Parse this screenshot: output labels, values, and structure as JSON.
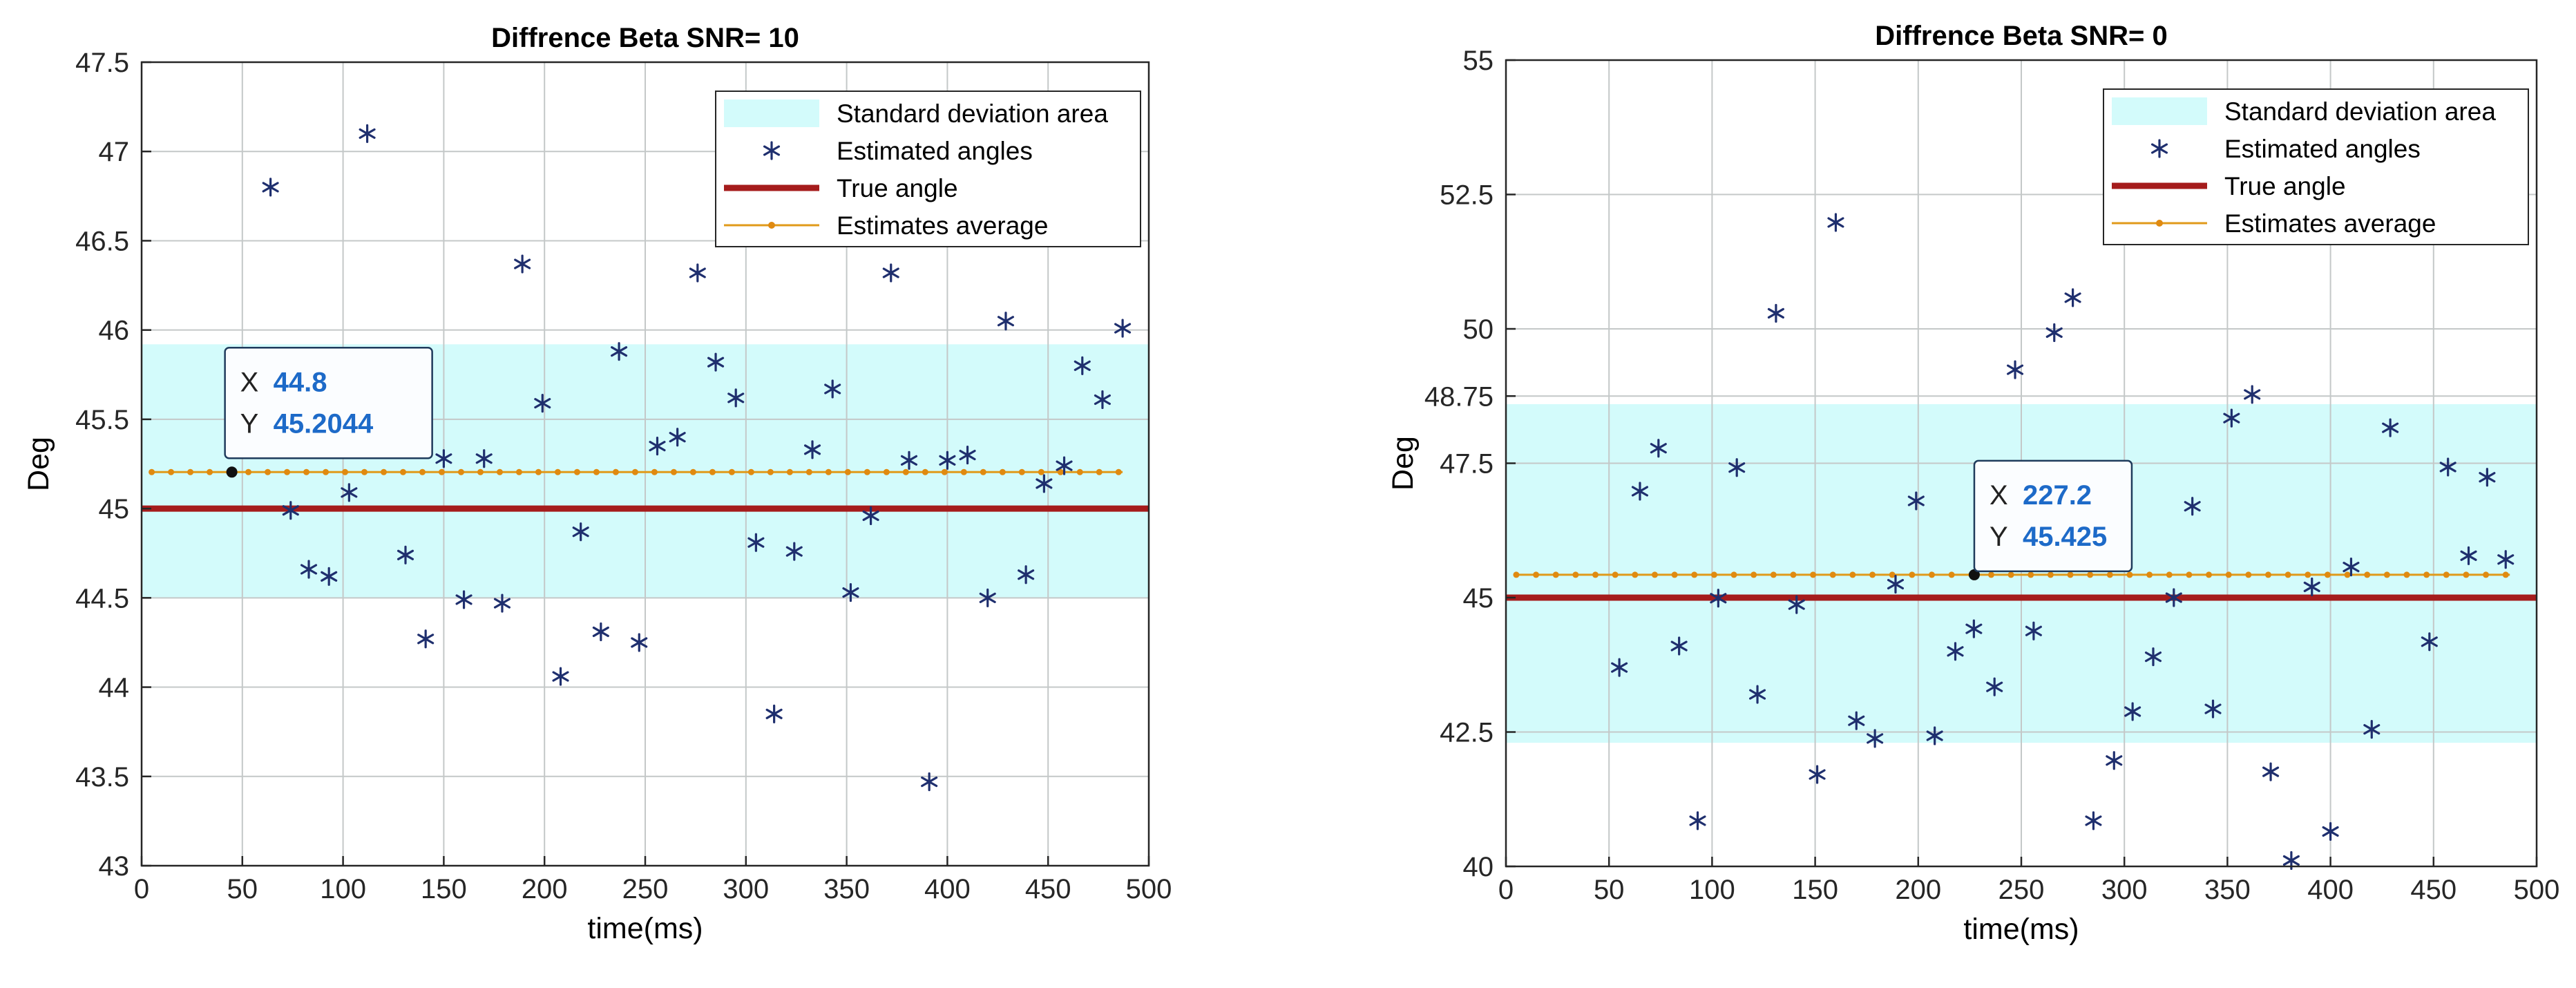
{
  "chart_data": [
    {
      "type": "scatter",
      "title": "Diffrence Beta SNR= 10",
      "xlabel": "time(ms)",
      "ylabel": "Deg",
      "xlim": [
        0,
        500
      ],
      "ylim": [
        43,
        47.5
      ],
      "xticks": [
        0,
        50,
        100,
        150,
        200,
        250,
        300,
        350,
        400,
        450,
        500
      ],
      "yticks": [
        43,
        43.5,
        44,
        44.5,
        45,
        45.5,
        46,
        46.5,
        47,
        47.5
      ],
      "ytick_labels": [
        "43",
        "43.5",
        "44",
        "44.5",
        "45",
        "45.5",
        "46",
        "46.5",
        "47",
        "47.5"
      ],
      "grid": true,
      "legend_position": "top-right",
      "legend": [
        "Standard deviation area",
        "Estimated angles",
        "True angle",
        "Estimates average"
      ],
      "std_area": [
        44.5,
        45.92
      ],
      "true_angle": 45.0,
      "average": 45.2044,
      "average_range": [
        5,
        487
      ],
      "average_step": 9.6,
      "estimates": [
        [
          64,
          46.8
        ],
        [
          74,
          44.99
        ],
        [
          83,
          44.66
        ],
        [
          93,
          44.62
        ],
        [
          103,
          45.09
        ],
        [
          112,
          47.1
        ],
        [
          131,
          44.74
        ],
        [
          141,
          44.27
        ],
        [
          150,
          45.28
        ],
        [
          160,
          44.49
        ],
        [
          170,
          45.28
        ],
        [
          179,
          44.47
        ],
        [
          189,
          46.37
        ],
        [
          199,
          45.59
        ],
        [
          208,
          44.06
        ],
        [
          218,
          44.87
        ],
        [
          228,
          44.31
        ],
        [
          237,
          45.88
        ],
        [
          247,
          44.25
        ],
        [
          256,
          45.35
        ],
        [
          266,
          45.4
        ],
        [
          276,
          46.32
        ],
        [
          285,
          45.82
        ],
        [
          295,
          45.62
        ],
        [
          305,
          44.81
        ],
        [
          314,
          43.85
        ],
        [
          324,
          44.76
        ],
        [
          333,
          45.33
        ],
        [
          343,
          45.67
        ],
        [
          352,
          44.53
        ],
        [
          362,
          44.96
        ],
        [
          372,
          46.32
        ],
        [
          381,
          45.27
        ],
        [
          391,
          43.47
        ],
        [
          400,
          45.27
        ],
        [
          410,
          45.3
        ],
        [
          420,
          44.5
        ],
        [
          429,
          46.05
        ],
        [
          439,
          44.63
        ],
        [
          448,
          45.14
        ],
        [
          458,
          45.24
        ],
        [
          467,
          45.8
        ],
        [
          477,
          45.61
        ],
        [
          487,
          46.01
        ]
      ],
      "datatip": {
        "x": 44.8,
        "y": 45.2044,
        "x_label": "X",
        "y_label": "Y",
        "x_text": "44.8",
        "y_text": "45.2044"
      }
    },
    {
      "type": "scatter",
      "title": "Diffrence Beta SNR= 0",
      "xlabel": "time(ms)",
      "ylabel": "Deg",
      "xlim": [
        0,
        500
      ],
      "ylim": [
        40,
        55
      ],
      "xticks": [
        0,
        50,
        100,
        150,
        200,
        250,
        300,
        350,
        400,
        450,
        500
      ],
      "yticks": [
        40,
        42.5,
        45,
        47.5,
        48.75,
        50,
        52.5,
        55
      ],
      "ytick_labels": [
        "40",
        "42.5",
        "45",
        "47.5",
        "48.75",
        "50",
        "52.5",
        "55"
      ],
      "grid": true,
      "legend_position": "top-right",
      "legend": [
        "Standard deviation area",
        "Estimated angles",
        "True angle",
        "Estimates average"
      ],
      "std_area": [
        42.3,
        48.6
      ],
      "true_angle": 45.0,
      "average": 45.425,
      "average_range": [
        5,
        487
      ],
      "average_step": 9.6,
      "estimates": [
        [
          55,
          43.7
        ],
        [
          65,
          46.98
        ],
        [
          74,
          47.78
        ],
        [
          84,
          44.1
        ],
        [
          93,
          40.85
        ],
        [
          103,
          44.99
        ],
        [
          112,
          47.42
        ],
        [
          122,
          43.2
        ],
        [
          131,
          50.29
        ],
        [
          141,
          44.87
        ],
        [
          151,
          41.71
        ],
        [
          160,
          51.98
        ],
        [
          170,
          42.71
        ],
        [
          179,
          42.38
        ],
        [
          189,
          45.25
        ],
        [
          199,
          46.8
        ],
        [
          208,
          42.43
        ],
        [
          218,
          44.0
        ],
        [
          227,
          44.42
        ],
        [
          237,
          43.34
        ],
        [
          247,
          49.24
        ],
        [
          256,
          44.38
        ],
        [
          266,
          49.93
        ],
        [
          275,
          50.58
        ],
        [
          285,
          40.85
        ],
        [
          295,
          41.97
        ],
        [
          304,
          42.88
        ],
        [
          314,
          43.9
        ],
        [
          324,
          45.0
        ],
        [
          333,
          46.7
        ],
        [
          343,
          42.93
        ],
        [
          352,
          48.34
        ],
        [
          362,
          48.78
        ],
        [
          371,
          41.76
        ],
        [
          381,
          40.11
        ],
        [
          391,
          45.2
        ],
        [
          400,
          40.65
        ],
        [
          410,
          45.57
        ],
        [
          420,
          42.55
        ],
        [
          429,
          48.16
        ],
        [
          448,
          44.18
        ],
        [
          457,
          47.43
        ],
        [
          467,
          45.78
        ],
        [
          476,
          47.24
        ],
        [
          485,
          45.71
        ]
      ],
      "datatip": {
        "x": 227.2,
        "y": 45.425,
        "x_label": "X",
        "y_label": "Y",
        "x_text": "227.2",
        "y_text": "45.425"
      }
    }
  ]
}
